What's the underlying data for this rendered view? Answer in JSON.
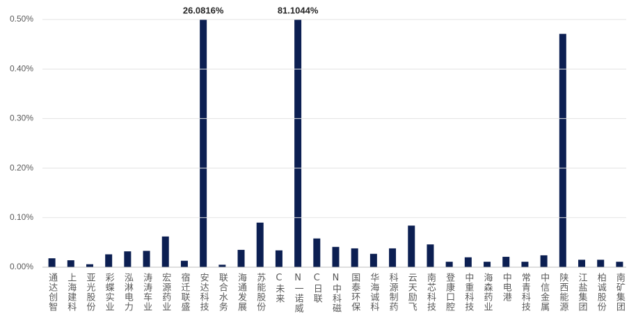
{
  "chart_data": {
    "type": "bar",
    "categories": [
      "通达创智",
      "上海建科",
      "亚光股份",
      "彩蝶实业",
      "泓淋电力",
      "涛涛车业",
      "宏源药业",
      "宿迁联盛",
      "安达科技",
      "联合水务",
      "海通发展",
      "苏能股份",
      "C未来",
      "N一诺威",
      "C日联",
      "N中科磁",
      "国泰环保",
      "华海诚科",
      "科源制药",
      "云天励飞",
      "南芯科技",
      "登康口腔",
      "中重科技",
      "海森药业",
      "中电港",
      "常青科技",
      "中信金属",
      "陕西能源",
      "江盐集团",
      "柏诚股份",
      "南矿集团"
    ],
    "values": [
      0.018,
      0.014,
      0.006,
      0.026,
      0.032,
      0.033,
      0.062,
      0.013,
      26.0816,
      0.005,
      0.035,
      0.09,
      0.034,
      81.1044,
      0.058,
      0.041,
      0.038,
      0.027,
      0.038,
      0.084,
      0.046,
      0.011,
      0.02,
      0.011,
      0.021,
      0.011,
      0.024,
      0.471,
      0.015,
      0.015,
      0.011
    ],
    "value_labels": [
      null,
      null,
      null,
      null,
      null,
      null,
      null,
      null,
      "26.0816%",
      null,
      null,
      null,
      null,
      "81.1044%",
      null,
      null,
      null,
      null,
      null,
      null,
      null,
      null,
      null,
      null,
      null,
      null,
      null,
      null,
      null,
      null,
      null
    ],
    "color": "#0c1f52",
    "ylim": [
      0,
      0.5
    ],
    "yticks": [
      {
        "value": 0,
        "label": "0.00%"
      },
      {
        "value": 0.1,
        "label": "0.10%"
      },
      {
        "value": 0.2,
        "label": "0.20%"
      },
      {
        "value": 0.3,
        "label": "0.30%"
      },
      {
        "value": 0.4,
        "label": "0.40%"
      },
      {
        "value": 0.5,
        "label": "0.50%"
      }
    ],
    "grid": true
  }
}
